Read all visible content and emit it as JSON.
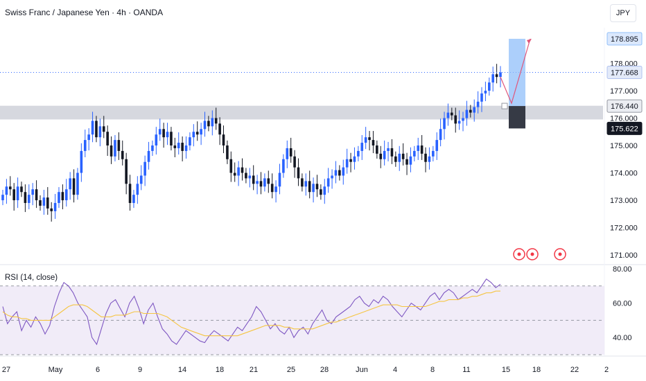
{
  "header": {
    "title": "Swiss Franc / Japanese Yen · 4h · OANDA",
    "currency": "JPY"
  },
  "rsi": {
    "title": "RSI (14, close)"
  },
  "colors": {
    "up": "#2962ff",
    "down": "#131722",
    "zone": "#d1d4dc",
    "target": "#90bff9",
    "stop": "#363a45",
    "arrow": "#e0567a",
    "rsi_line": "#7e57c2",
    "rsi_ma": "#f5c542",
    "rsi_band": "#ede7f6",
    "price_line": "#2962ff",
    "event": "#f23645"
  },
  "chart_data": [
    {
      "type": "candlestick",
      "title": "Swiss Franc / Japanese Yen · 4h · OANDA",
      "x_tick_labels": [
        "27",
        "May",
        "6",
        "9",
        "14",
        "18",
        "21",
        "25",
        "28",
        "Jun",
        "4",
        "8",
        "11",
        "15",
        "18",
        "22",
        "2"
      ],
      "y_tick_labels": [
        "171.000",
        "172.000",
        "173.000",
        "174.000",
        "175.000",
        "176.000",
        "177.000",
        "178.000"
      ],
      "ylim": [
        170.7,
        179.3
      ],
      "price_labels": [
        {
          "value": 178.895,
          "label": "178.895",
          "style": "target"
        },
        {
          "value": 177.668,
          "label": "177.668",
          "style": "last"
        },
        {
          "value": 176.44,
          "label": "176.440",
          "style": "entry"
        },
        {
          "value": 175.622,
          "label": "175.622",
          "style": "stop"
        }
      ],
      "support_zone": [
        175.95,
        176.45
      ],
      "position": {
        "entry": 176.44,
        "target": 178.895,
        "stop": 175.622
      },
      "candles_close": [
        173.2,
        173.5,
        173.4,
        173.0,
        173.5,
        173.3,
        172.9,
        173.2,
        173.4,
        173.0,
        172.8,
        173.1,
        172.7,
        172.6,
        172.9,
        173.3,
        173.0,
        173.4,
        173.8,
        173.2,
        174.0,
        174.8,
        175.2,
        175.4,
        175.9,
        175.3,
        175.7,
        175.5,
        175.0,
        174.6,
        175.2,
        174.8,
        174.5,
        173.6,
        172.9,
        173.2,
        173.6,
        173.9,
        174.4,
        174.8,
        175.0,
        175.4,
        175.6,
        175.3,
        175.5,
        175.0,
        174.9,
        175.1,
        174.8,
        175.0,
        175.3,
        175.5,
        175.4,
        175.6,
        175.9,
        175.7,
        176.0,
        175.8,
        175.4,
        175.0,
        174.5,
        174.0,
        173.9,
        174.2,
        174.0,
        173.8,
        173.9,
        173.6,
        173.7,
        173.5,
        173.8,
        173.6,
        173.3,
        173.5,
        174.0,
        174.5,
        174.9,
        174.6,
        174.2,
        173.8,
        173.5,
        173.7,
        173.3,
        173.6,
        173.4,
        173.2,
        173.5,
        173.8,
        173.9,
        174.1,
        173.9,
        174.2,
        174.5,
        174.4,
        174.6,
        174.8,
        175.1,
        175.3,
        175.2,
        175.0,
        174.7,
        174.5,
        174.8,
        174.9,
        174.6,
        174.4,
        174.7,
        174.5,
        174.3,
        174.6,
        174.8,
        175.0,
        174.7,
        174.4,
        174.6,
        174.8,
        175.2,
        175.6,
        176.0,
        176.2,
        176.1,
        175.8,
        175.9,
        176.0,
        176.3,
        176.2,
        176.4,
        176.6,
        176.9,
        177.0,
        177.3,
        177.6,
        177.5,
        177.668
      ]
    },
    {
      "type": "line",
      "title": "RSI (14, close)",
      "y_tick_labels": [
        "80.00",
        "60.00",
        "40.00"
      ],
      "ylim": [
        30,
        82
      ],
      "bands": [
        70,
        50,
        30
      ],
      "series": [
        {
          "values": [
            58,
            48,
            52,
            55,
            44,
            50,
            46,
            52,
            48,
            42,
            47,
            58,
            66,
            72,
            70,
            66,
            60,
            56,
            52,
            40,
            36,
            45,
            54,
            60,
            62,
            57,
            52,
            60,
            64,
            57,
            48,
            56,
            60,
            52,
            45,
            42,
            38,
            36,
            40,
            44,
            42,
            40,
            38,
            37,
            41,
            44,
            42,
            40,
            38,
            42,
            46,
            44,
            48,
            52,
            58,
            55,
            50,
            45,
            48,
            44,
            42,
            46,
            40,
            44,
            46,
            42,
            48,
            52,
            56,
            50,
            48,
            52,
            54,
            56,
            58,
            62,
            64,
            60,
            58,
            62,
            60,
            64,
            62,
            58,
            55,
            52,
            56,
            60,
            58,
            56,
            60,
            64,
            66,
            62,
            66,
            68,
            66,
            62,
            64,
            66,
            68,
            66,
            70,
            74,
            72,
            69,
            71
          ]
        },
        {
          "values": [
            55,
            53,
            52,
            52,
            51,
            51,
            50,
            50,
            50,
            50,
            50,
            52,
            54,
            56,
            58,
            59,
            59,
            59,
            58,
            56,
            54,
            52,
            52,
            52,
            53,
            53,
            53,
            54,
            55,
            55,
            54,
            54,
            54,
            54,
            53,
            52,
            50,
            48,
            46,
            45,
            44,
            43,
            42,
            41,
            41,
            41,
            41,
            41,
            41,
            41,
            41,
            42,
            43,
            44,
            45,
            46,
            47,
            47,
            47,
            47,
            46,
            46,
            45,
            45,
            45,
            45,
            45,
            46,
            47,
            48,
            49,
            49,
            50,
            51,
            52,
            53,
            54,
            55,
            56,
            57,
            58,
            59,
            59,
            59,
            59,
            58,
            58,
            58,
            58,
            58,
            58,
            59,
            60,
            61,
            61,
            62,
            62,
            62,
            63,
            63,
            64,
            64,
            65,
            66,
            66,
            67,
            67
          ]
        }
      ]
    }
  ]
}
